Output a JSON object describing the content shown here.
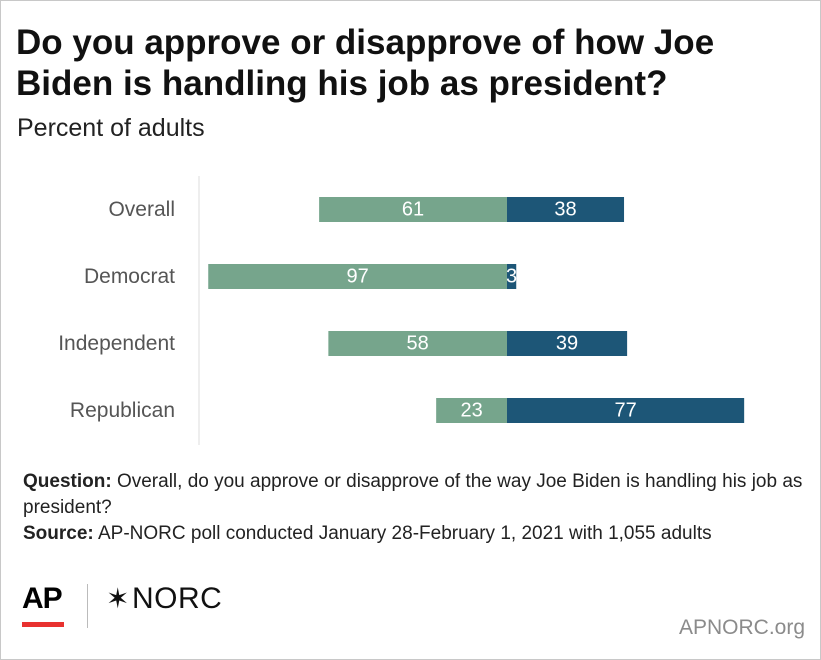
{
  "title": "Do you approve or disapprove of how Joe Biden is handling his job as president?",
  "subtitle": "Percent of adults",
  "footnote": {
    "question_label": "Question:",
    "question_text": " Overall, do you approve or disapprove of the way Joe Biden is handling his job as president?",
    "source_label": "Source:",
    "source_text": " AP-NORC poll conducted January 28-February 1, 2021 with 1,055 adults"
  },
  "logos": {
    "ap": "AP",
    "norc_mark": "✶",
    "norc": "NORC"
  },
  "site": "APNORC.org",
  "colors": {
    "approve": "#76a58c",
    "disapprove": "#1d5677",
    "label_text": "#ffffff",
    "axis": "#dddddd",
    "category_text": "#555555",
    "ap_red": "#e8312f"
  },
  "chart_data": {
    "type": "bar",
    "orientation": "horizontal-diverging",
    "categories": [
      "Overall",
      "Democrat",
      "Independent",
      "Republican"
    ],
    "series": [
      {
        "name": "",
        "values": [
          61,
          97,
          58,
          23
        ],
        "color": "#76a58c"
      },
      {
        "name": "",
        "values": [
          38,
          3,
          39,
          77
        ],
        "color": "#1d5677"
      }
    ],
    "xlim": [
      -100,
      100
    ],
    "grid": false,
    "legend": "none",
    "title": "",
    "xlabel": "",
    "ylabel": ""
  }
}
